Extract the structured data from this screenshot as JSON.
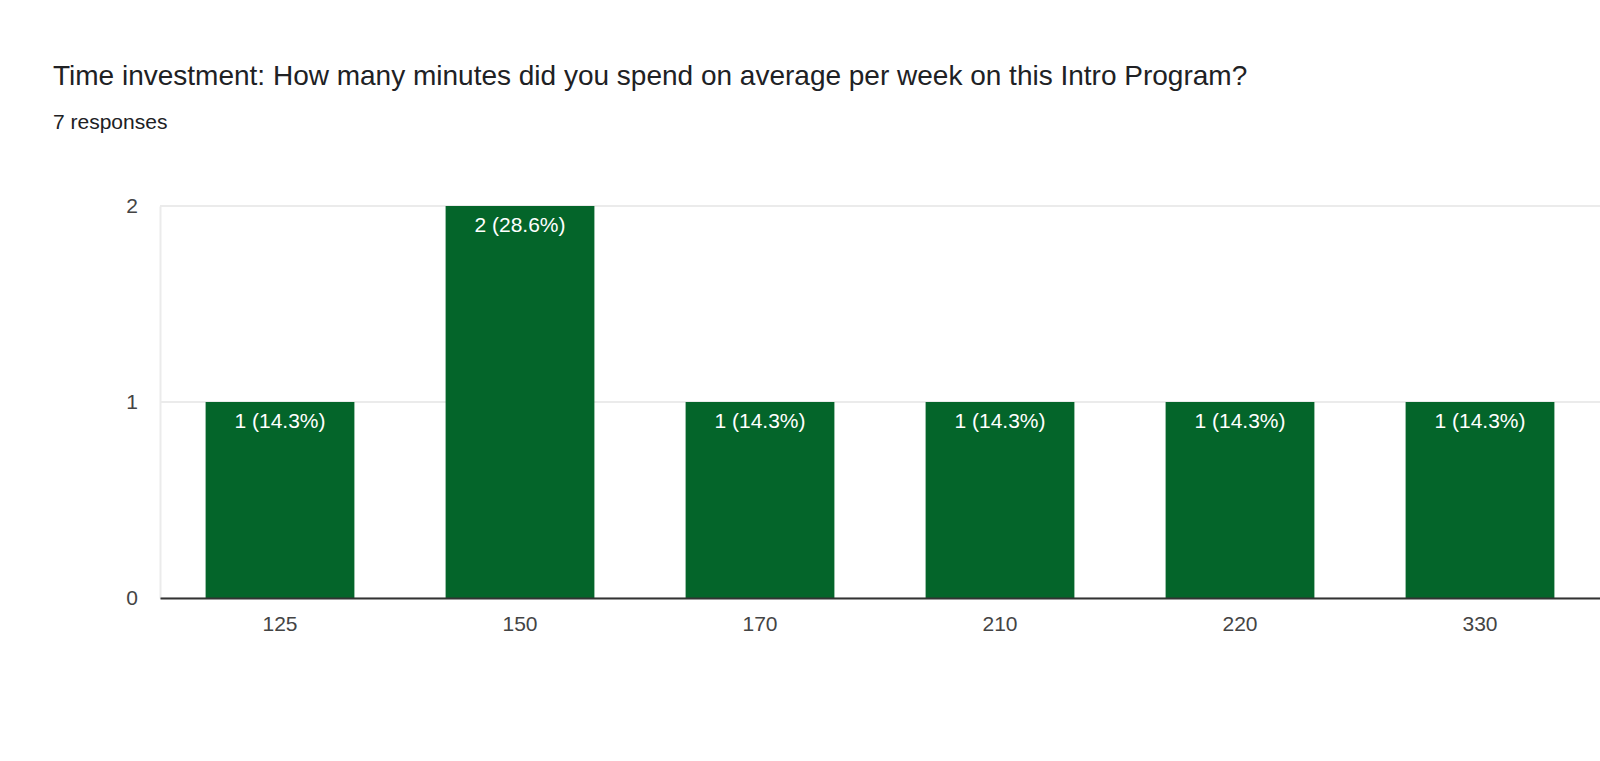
{
  "chart_data": {
    "type": "bar",
    "title": "Time investment: How many minutes did you spend on average per week on this Intro Program?",
    "subtitle": "7 responses",
    "categories": [
      "125",
      "150",
      "170",
      "210",
      "220",
      "330"
    ],
    "values": [
      1,
      2,
      1,
      1,
      1,
      1
    ],
    "value_labels": [
      "1 (14.3%)",
      "2 (28.6%)",
      "1 (14.3%)",
      "1 (14.3%)",
      "1 (14.3%)",
      "1 (14.3%)"
    ],
    "color": "#04652a",
    "ylim": [
      0,
      2
    ],
    "yticks": [
      0,
      1,
      2
    ],
    "grid": true,
    "data_labels": true
  }
}
